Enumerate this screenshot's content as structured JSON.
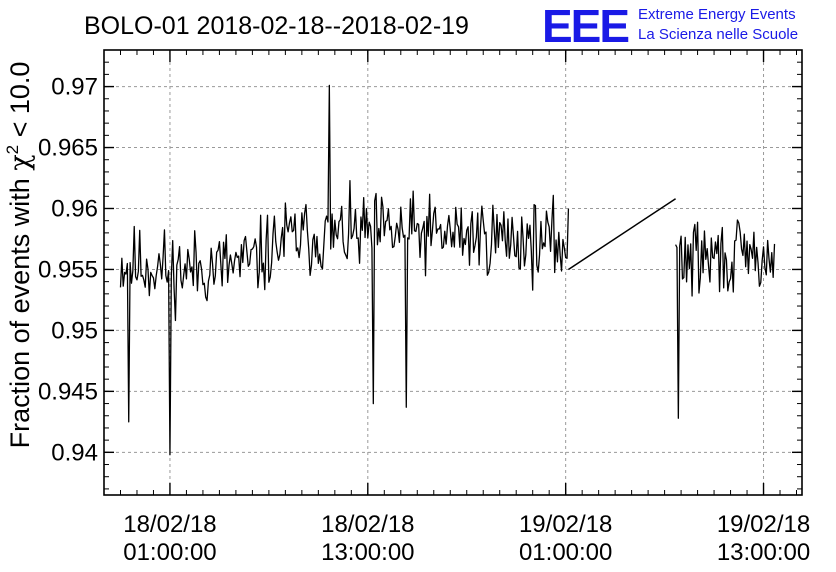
{
  "chart_data": {
    "type": "line",
    "title": "BOLO-01 2018-02-18--2018-02-19",
    "ylabel": "Fraction of events with χ² < 10.0",
    "ylabel_parts": [
      "Fraction of events with ",
      "χ",
      "2",
      " < 10.0"
    ],
    "xlabel": "",
    "ylim": [
      0.9365,
      0.973
    ],
    "xlim": [
      "2018-02-17T21:00:00",
      "2018-02-19T15:20:00"
    ],
    "grid": true,
    "legend": "none",
    "line_color": "#000000",
    "x_ticks": [
      {
        "x": "2018-02-18T01:00:00",
        "date": "18/02/18",
        "time": "01:00:00"
      },
      {
        "x": "2018-02-18T13:00:00",
        "date": "18/02/18",
        "time": "13:00:00"
      },
      {
        "x": "2018-02-19T01:00:00",
        "date": "19/02/18",
        "time": "01:00:00"
      },
      {
        "x": "2018-02-19T13:00:00",
        "date": "19/02/18",
        "time": "13:00:00"
      }
    ],
    "y_ticks": [
      0.94,
      0.945,
      0.95,
      0.955,
      0.96,
      0.965,
      0.97
    ],
    "y_tick_labels": [
      "0.94",
      "0.945",
      "0.95",
      "0.955",
      "0.96",
      "0.965",
      "0.97"
    ],
    "segments": [
      {
        "start": "2018-02-17T22:00:00",
        "end": "2018-02-19T01:10:00",
        "sample_minutes": 5,
        "base": 0.9558,
        "noise": 0.0055,
        "seed": 11,
        "knots": [
          [
            "2018-02-17T22:00:00",
            0.9555
          ],
          [
            "2018-02-18T02:00:00",
            0.955
          ],
          [
            "2018-02-18T06:00:00",
            0.9555
          ],
          [
            "2018-02-18T08:00:00",
            0.9575
          ],
          [
            "2018-02-18T14:00:00",
            0.958
          ],
          [
            "2018-02-18T20:00:00",
            0.9578
          ],
          [
            "2018-02-19T01:10:00",
            0.957
          ]
        ]
      },
      {
        "start": "2018-02-19T07:40:00",
        "end": "2018-02-19T13:40:00",
        "sample_minutes": 5,
        "base": 0.956,
        "noise": 0.0055,
        "seed": 29,
        "knots": [
          [
            "2018-02-19T07:40:00",
            0.956
          ],
          [
            "2018-02-19T13:40:00",
            0.9558
          ]
        ]
      }
    ],
    "extremes": [
      {
        "x": "2018-02-18T01:00:00",
        "y": 0.9398
      },
      {
        "x": "2018-02-18T10:40:00",
        "y": 0.9701
      },
      {
        "x": "2018-02-18T13:20:00",
        "y": 0.944
      },
      {
        "x": "2018-02-18T15:20:00",
        "y": 0.9437
      },
      {
        "x": "2018-02-17T22:30:00",
        "y": 0.9425
      },
      {
        "x": "2018-02-19T07:50:00",
        "y": 0.9428
      }
    ],
    "gap_bridge": [
      {
        "x": "2018-02-19T01:10:00",
        "y": 0.955
      },
      {
        "x": "2018-02-19T07:40:00",
        "y": 0.9608
      }
    ]
  },
  "logo": {
    "mark": "EEE",
    "line1": "Extreme Energy Events",
    "line2": "La Scienza nelle Scuole",
    "color": "#1a1ae6"
  }
}
